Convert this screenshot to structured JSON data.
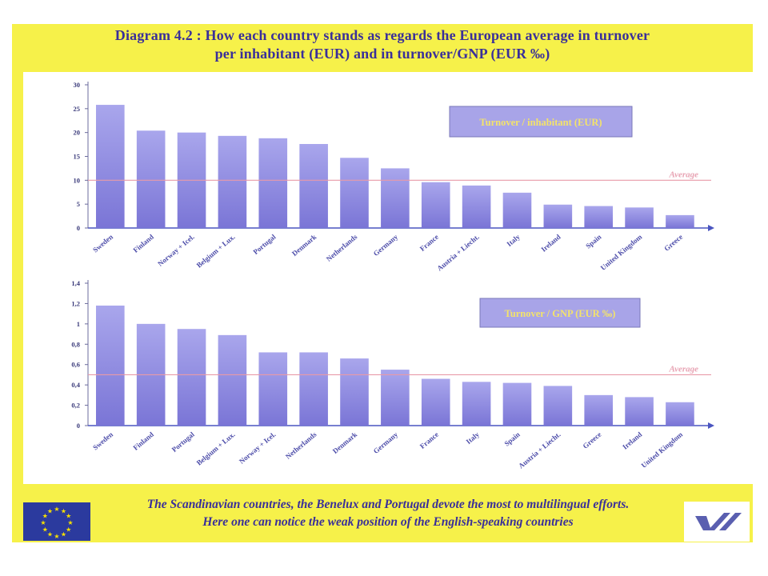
{
  "title": {
    "line1": "Diagram 4.2 : How each country stands as regards the European average in turnover",
    "line2": "per inhabitant (EUR) and in turnover/GNP (EUR ‰)"
  },
  "footer": {
    "line1": "The Scandinavian countries, the Benelux and Portugal devote the most to multilingual efforts.",
    "line2": "Here one can notice the weak position of the English-speaking countries"
  },
  "icons": {
    "flag": "eu-flag-icon",
    "logo": "publisher-logo-icon"
  },
  "colors": {
    "background_yellow": "#f6f14a",
    "title_text": "#3a2f9a",
    "average_line": "#e89aa8",
    "bar_top": "#a9a6ec",
    "bar_bottom": "#7a75d6",
    "legend_box": "#a8a4e8",
    "legend_text": "#f3e36b"
  },
  "chart_data": [
    {
      "type": "bar",
      "legend": "Turnover / inhabitant (EUR)",
      "average_label": "Average",
      "average_value": 10,
      "ylim": [
        0,
        30
      ],
      "yticks": [
        "0",
        "5",
        "10",
        "15",
        "20",
        "25",
        "30"
      ],
      "categories": [
        "Sweden",
        "Finland",
        "Norway + Icel.",
        "Belgium + Lux.",
        "Portugal",
        "Denmark",
        "Netherlands",
        "Germany",
        "France",
        "Austria + Liecht.",
        "Italy",
        "Ireland",
        "Spain",
        "United Kingdom",
        "Greece"
      ],
      "values": [
        25.8,
        20.4,
        20.0,
        19.3,
        18.8,
        17.6,
        14.7,
        12.5,
        9.6,
        8.9,
        7.4,
        4.9,
        4.6,
        4.3,
        2.7
      ]
    },
    {
      "type": "bar",
      "legend": "Turnover / GNP (EUR ‰)",
      "average_label": "Average",
      "average_value": 0.5,
      "ylim": [
        0,
        1.4
      ],
      "yticks": [
        "0",
        "0,2",
        "0,4",
        "0,6",
        "0,8",
        "1",
        "1,2",
        "1,4"
      ],
      "categories": [
        "Sweden",
        "Finland",
        "Portugal",
        "Belgium + Lux.",
        "Norway + Icel.",
        "Netherlands",
        "Denmark",
        "Germany",
        "France",
        "Italy",
        "Spain",
        "Austria + Liecht.",
        "Greece",
        "Ireland",
        "United Kingdom"
      ],
      "values": [
        1.18,
        1.0,
        0.95,
        0.89,
        0.72,
        0.72,
        0.66,
        0.55,
        0.46,
        0.43,
        0.42,
        0.39,
        0.3,
        0.28,
        0.23
      ]
    }
  ]
}
